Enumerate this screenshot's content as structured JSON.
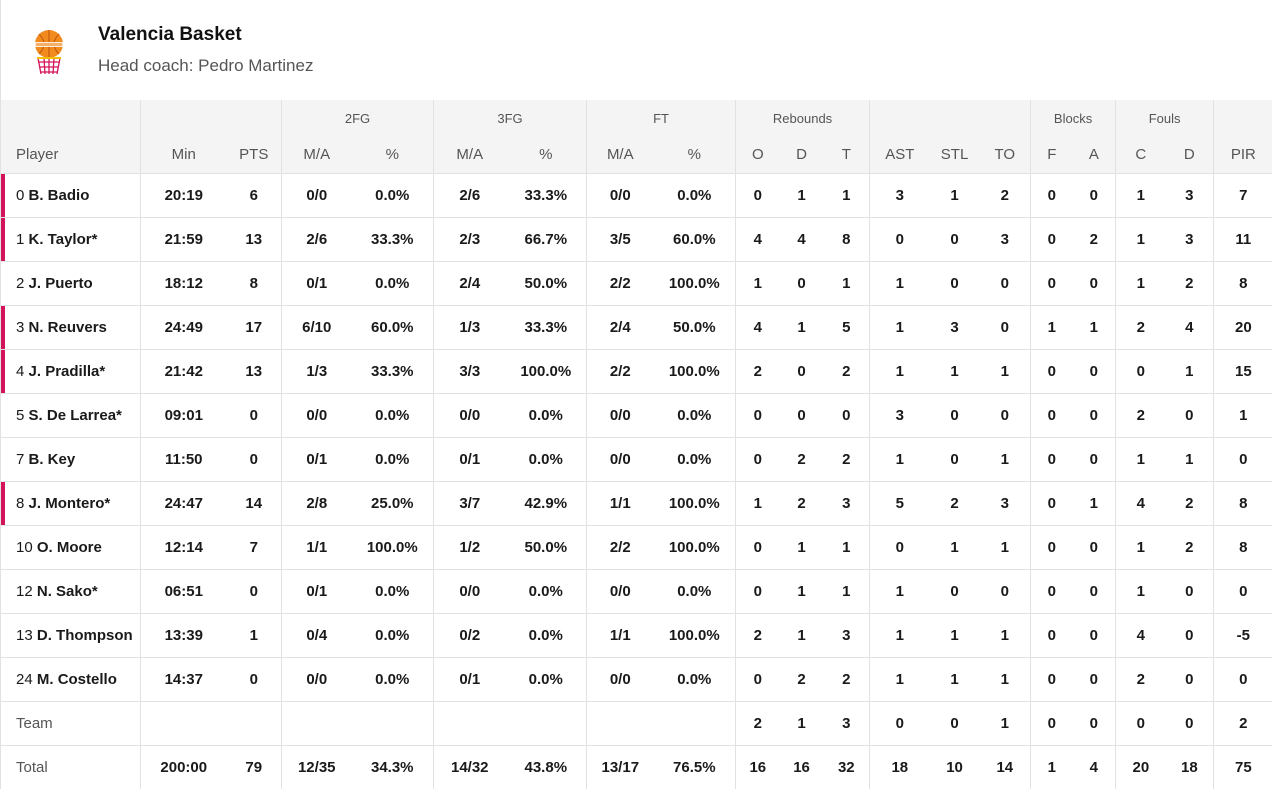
{
  "team": {
    "name": "Valencia Basket",
    "coach": "Head coach: Pedro Martinez",
    "logo_icon": "valencia-basket-logo",
    "accent_color": "#d4145a"
  },
  "groups": {
    "fg2": "2FG",
    "fg3": "3FG",
    "ft": "FT",
    "reb": "Rebounds",
    "blk": "Blocks",
    "fouls": "Fouls"
  },
  "columns": [
    "Player",
    "Min",
    "PTS",
    "M/A",
    "%",
    "M/A",
    "%",
    "M/A",
    "%",
    "O",
    "D",
    "T",
    "AST",
    "STL",
    "TO",
    "F",
    "A",
    "C",
    "D",
    "PIR"
  ],
  "players": [
    {
      "num": "0",
      "name": "B. Badio",
      "starter": true,
      "stats": [
        "20:19",
        "6",
        "0/0",
        "0.0%",
        "2/6",
        "33.3%",
        "0/0",
        "0.0%",
        "0",
        "1",
        "1",
        "3",
        "1",
        "2",
        "0",
        "0",
        "1",
        "3",
        "7"
      ]
    },
    {
      "num": "1",
      "name": "K. Taylor*",
      "starter": true,
      "stats": [
        "21:59",
        "13",
        "2/6",
        "33.3%",
        "2/3",
        "66.7%",
        "3/5",
        "60.0%",
        "4",
        "4",
        "8",
        "0",
        "0",
        "3",
        "0",
        "2",
        "1",
        "3",
        "11"
      ]
    },
    {
      "num": "2",
      "name": "J. Puerto",
      "starter": false,
      "stats": [
        "18:12",
        "8",
        "0/1",
        "0.0%",
        "2/4",
        "50.0%",
        "2/2",
        "100.0%",
        "1",
        "0",
        "1",
        "1",
        "0",
        "0",
        "0",
        "0",
        "1",
        "2",
        "8"
      ]
    },
    {
      "num": "3",
      "name": "N. Reuvers",
      "starter": true,
      "stats": [
        "24:49",
        "17",
        "6/10",
        "60.0%",
        "1/3",
        "33.3%",
        "2/4",
        "50.0%",
        "4",
        "1",
        "5",
        "1",
        "3",
        "0",
        "1",
        "1",
        "2",
        "4",
        "20"
      ]
    },
    {
      "num": "4",
      "name": "J. Pradilla*",
      "starter": true,
      "stats": [
        "21:42",
        "13",
        "1/3",
        "33.3%",
        "3/3",
        "100.0%",
        "2/2",
        "100.0%",
        "2",
        "0",
        "2",
        "1",
        "1",
        "1",
        "0",
        "0",
        "0",
        "1",
        "15"
      ]
    },
    {
      "num": "5",
      "name": "S. De Larrea*",
      "starter": false,
      "stats": [
        "09:01",
        "0",
        "0/0",
        "0.0%",
        "0/0",
        "0.0%",
        "0/0",
        "0.0%",
        "0",
        "0",
        "0",
        "3",
        "0",
        "0",
        "0",
        "0",
        "2",
        "0",
        "1"
      ]
    },
    {
      "num": "7",
      "name": "B. Key",
      "starter": false,
      "stats": [
        "11:50",
        "0",
        "0/1",
        "0.0%",
        "0/1",
        "0.0%",
        "0/0",
        "0.0%",
        "0",
        "2",
        "2",
        "1",
        "0",
        "1",
        "0",
        "0",
        "1",
        "1",
        "0"
      ]
    },
    {
      "num": "8",
      "name": "J. Montero*",
      "starter": true,
      "stats": [
        "24:47",
        "14",
        "2/8",
        "25.0%",
        "3/7",
        "42.9%",
        "1/1",
        "100.0%",
        "1",
        "2",
        "3",
        "5",
        "2",
        "3",
        "0",
        "1",
        "4",
        "2",
        "8"
      ]
    },
    {
      "num": "10",
      "name": "O. Moore",
      "starter": false,
      "stats": [
        "12:14",
        "7",
        "1/1",
        "100.0%",
        "1/2",
        "50.0%",
        "2/2",
        "100.0%",
        "0",
        "1",
        "1",
        "0",
        "1",
        "1",
        "0",
        "0",
        "1",
        "2",
        "8"
      ]
    },
    {
      "num": "12",
      "name": "N. Sako*",
      "starter": false,
      "stats": [
        "06:51",
        "0",
        "0/1",
        "0.0%",
        "0/0",
        "0.0%",
        "0/0",
        "0.0%",
        "0",
        "1",
        "1",
        "1",
        "0",
        "0",
        "0",
        "0",
        "1",
        "0",
        "0"
      ]
    },
    {
      "num": "13",
      "name": "D. Thompson",
      "starter": false,
      "stats": [
        "13:39",
        "1",
        "0/4",
        "0.0%",
        "0/2",
        "0.0%",
        "1/1",
        "100.0%",
        "2",
        "1",
        "3",
        "1",
        "1",
        "1",
        "0",
        "0",
        "4",
        "0",
        "-5"
      ]
    },
    {
      "num": "24",
      "name": "M. Costello",
      "starter": false,
      "stats": [
        "14:37",
        "0",
        "0/0",
        "0.0%",
        "0/1",
        "0.0%",
        "0/0",
        "0.0%",
        "0",
        "2",
        "2",
        "1",
        "1",
        "1",
        "0",
        "0",
        "2",
        "0",
        "0"
      ]
    }
  ],
  "team_row": {
    "label": "Team",
    "stats": [
      "",
      "",
      "",
      "",
      "",
      "",
      "",
      "",
      "2",
      "1",
      "3",
      "0",
      "0",
      "1",
      "0",
      "0",
      "0",
      "0",
      "2"
    ]
  },
  "total_row": {
    "label": "Total",
    "stats": [
      "200:00",
      "79",
      "12/35",
      "34.3%",
      "14/32",
      "43.8%",
      "13/17",
      "76.5%",
      "16",
      "16",
      "32",
      "18",
      "10",
      "14",
      "1",
      "4",
      "20",
      "18",
      "75"
    ]
  }
}
